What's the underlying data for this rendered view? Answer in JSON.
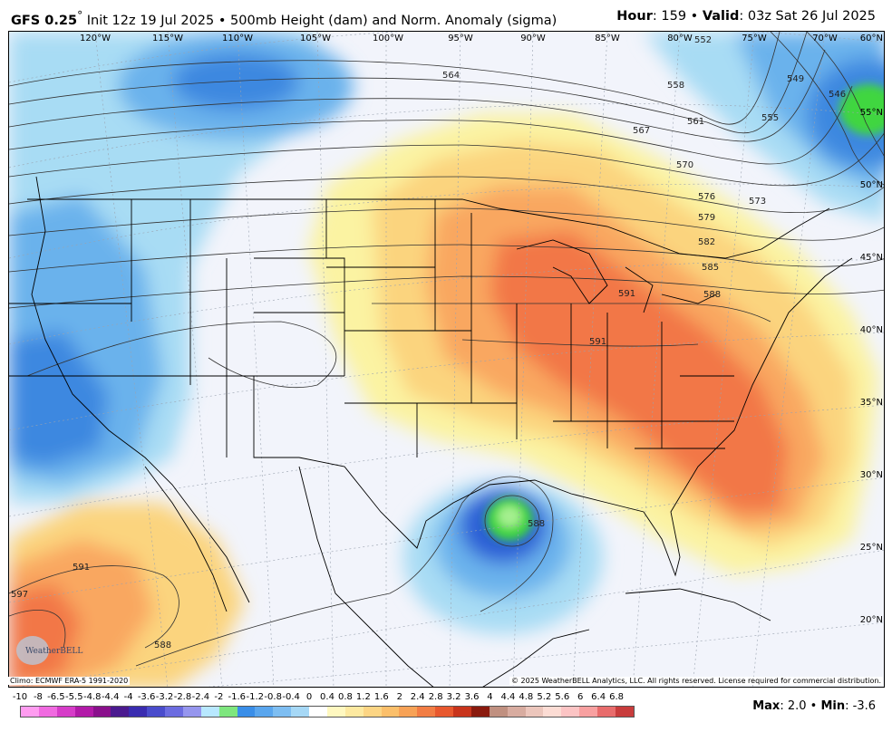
{
  "header": {
    "model": "GFS 0.25",
    "degree": "°",
    "init": " Init 12z 19 Jul 2025 • 500mb Height (dam) and Norm. Anomaly (sigma)",
    "hour_label": "Hour",
    "hour_value": ": 159 • ",
    "valid_label": "Valid",
    "valid_value": ": 03z Sat 26 Jul 2025"
  },
  "map": {
    "longitude_labels": [
      "120°W",
      "115°W",
      "110°W",
      "105°W",
      "100°W",
      "95°W",
      "90°W",
      "85°W",
      "80°W",
      "75°W",
      "70°W"
    ],
    "latitude_labels": [
      "60°N",
      "55°N",
      "50°N",
      "45°N",
      "40°N",
      "35°N",
      "30°N",
      "25°N",
      "20°N"
    ],
    "contour_labels": [
      "564",
      "558",
      "552",
      "549",
      "546",
      "561",
      "555",
      "567",
      "570",
      "576",
      "573",
      "579",
      "582",
      "585",
      "588",
      "591",
      "591",
      "588",
      "591",
      "597",
      "588"
    ],
    "colors": {
      "background": "#ffffff",
      "neutral": "#f2f4fb",
      "light_blue": "#a8dcf4",
      "mid_blue": "#6ab2ec",
      "blue": "#3c88e0",
      "deep_blue": "#2a5fd6",
      "green": "#3fd640",
      "light_green": "#a6f090",
      "yellow": "#fbf3a2",
      "light_orange": "#fbd47e",
      "orange": "#f9a760",
      "red_orange": "#f27747",
      "red": "#e84a2c"
    },
    "logo_text": "WeatherBELL"
  },
  "footer": {
    "climo": "Climo: ECMWF ERA-5 1991-2020",
    "copyright": "© 2025 WeatherBELL Analytics, LLC. All rights reserved. License required for commercial distribution."
  },
  "colorbar": {
    "labels": [
      "-10",
      "-8",
      "-6.5",
      "-5.5",
      "-4.8",
      "-4.4",
      "-4",
      "-3.6",
      "-3.2",
      "-2.8",
      "-2.4",
      "-2",
      "-1.6",
      "-1.2",
      "-0.8",
      "-0.4",
      "0",
      "0.4",
      "0.8",
      "1.2",
      "1.6",
      "2",
      "2.4",
      "2.8",
      "3.2",
      "3.6",
      "4",
      "4.4",
      "4.8",
      "5.2",
      "5.6",
      "6",
      "6.4",
      "6.8"
    ],
    "colors": [
      "#ff9cf0",
      "#f06ae0",
      "#d63cc8",
      "#b21aa8",
      "#8a108c",
      "#4b1a8f",
      "#3a2cb0",
      "#4a4ccc",
      "#6c6ce0",
      "#9696ee",
      "#b8e8ff",
      "#7ee67e",
      "#3a8ee8",
      "#5aa6ee",
      "#7ebef2",
      "#a6d8f6",
      "#ffffff",
      "#fff8c0",
      "#fde9a0",
      "#fcd584",
      "#fbbf6a",
      "#f7a256",
      "#f27d44",
      "#e8582e",
      "#c8341c",
      "#8a1a0e",
      "#c09080",
      "#d8aca0",
      "#ecc6bc",
      "#fcdcd4",
      "#fcc4c4",
      "#f8a0a0",
      "#e86c6c",
      "#c83c3c"
    ]
  },
  "stats": {
    "max_label": "Max",
    "max_value": ": 2.0 • ",
    "min_label": "Min",
    "min_value": ": -3.6"
  }
}
